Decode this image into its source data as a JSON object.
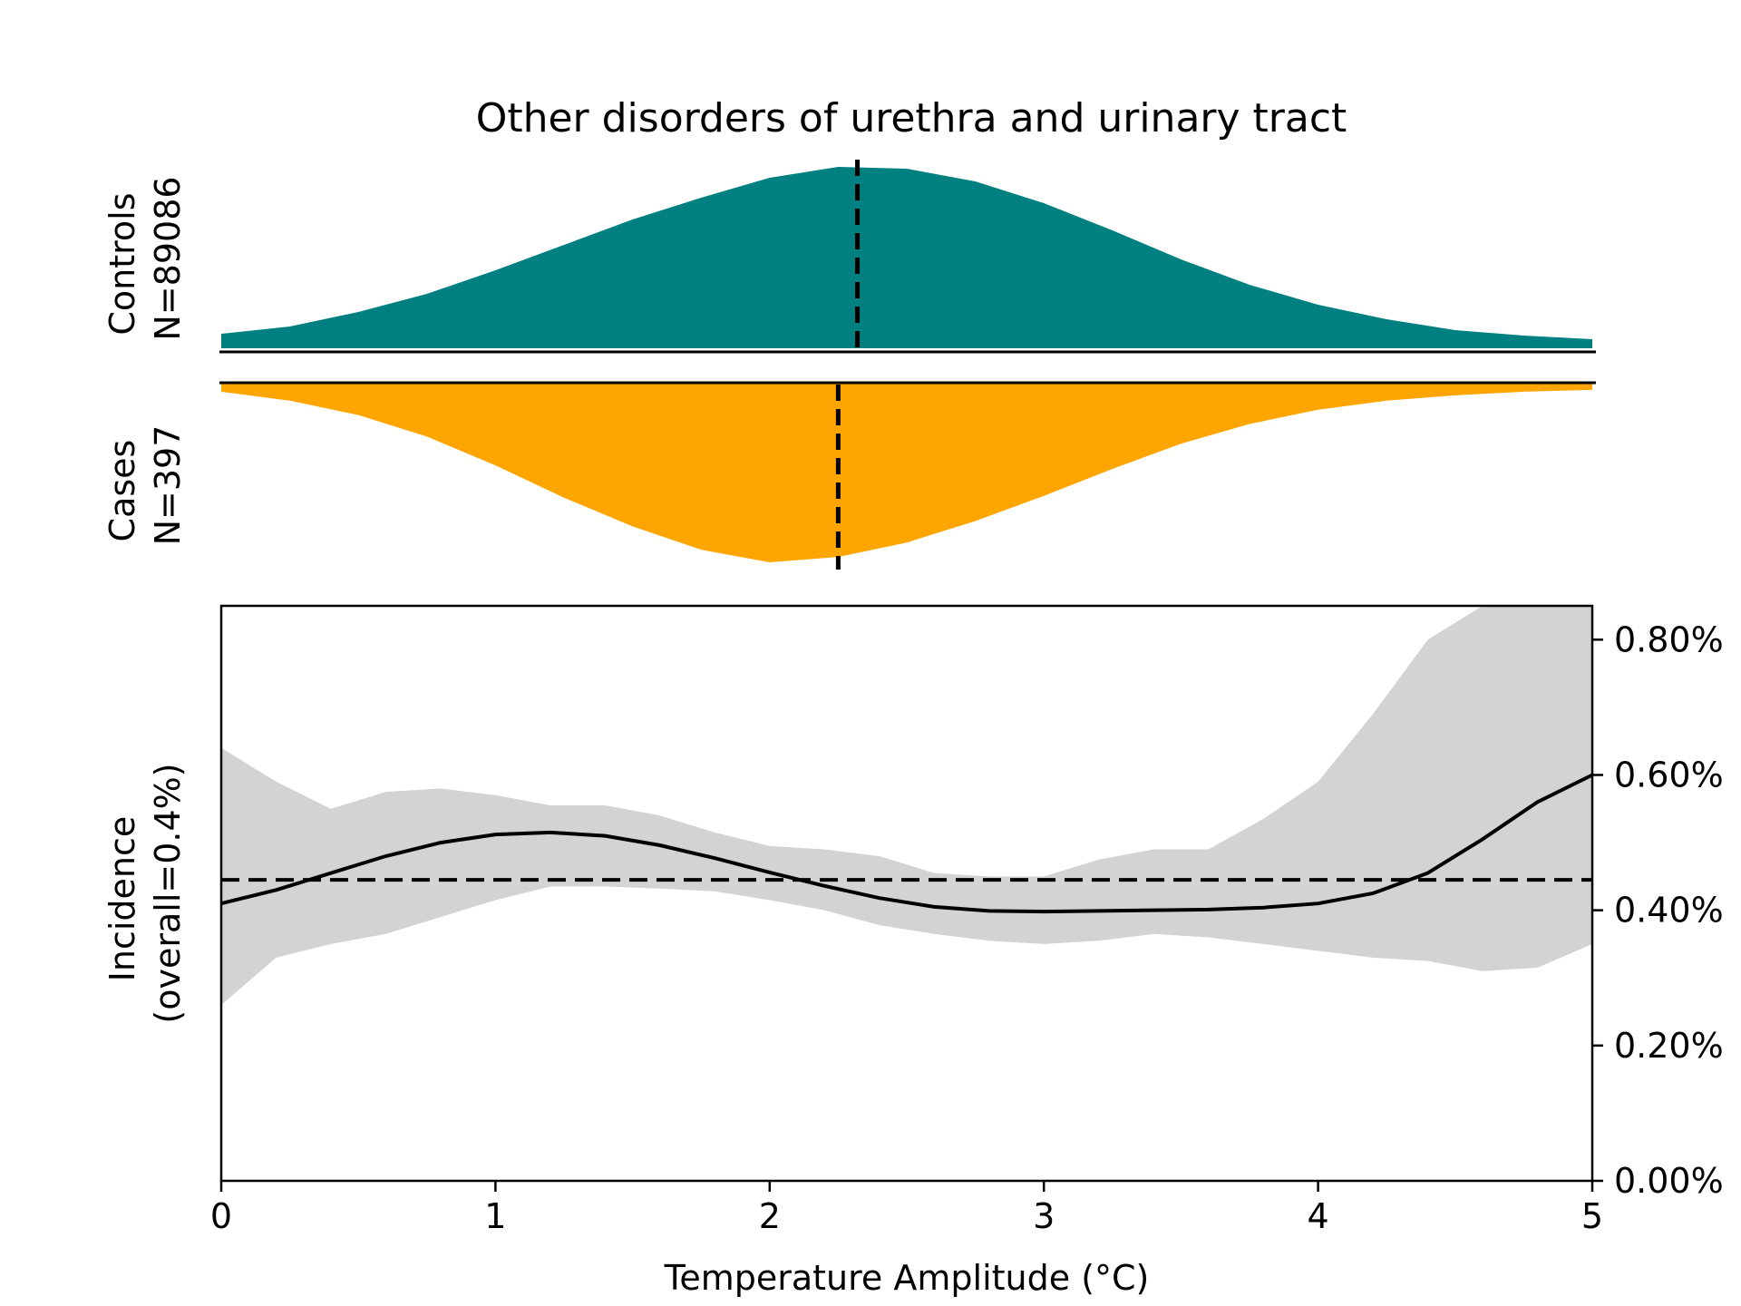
{
  "colors": {
    "controls": "#008080",
    "cases": "#FFA500",
    "ci_band": "#D3D3D3",
    "line": "#000000"
  },
  "chart_data": [
    {
      "type": "area",
      "panel": "controls-density",
      "title": "Other disorders of urethra and urinary tract",
      "ylabel_line1": "Controls",
      "ylabel_line2": "N=89086",
      "x": [
        0,
        0.25,
        0.5,
        0.75,
        1.0,
        1.25,
        1.5,
        1.75,
        2.0,
        2.25,
        2.5,
        2.75,
        3.0,
        3.25,
        3.5,
        3.75,
        4.0,
        4.25,
        4.5,
        4.75,
        5.0
      ],
      "values": [
        0.08,
        0.12,
        0.2,
        0.3,
        0.43,
        0.57,
        0.71,
        0.83,
        0.94,
        1.0,
        0.99,
        0.92,
        0.8,
        0.65,
        0.49,
        0.35,
        0.24,
        0.16,
        0.1,
        0.07,
        0.05
      ],
      "mean_marker_x": 2.32
    },
    {
      "type": "area",
      "panel": "cases-density",
      "ylabel_line1": "Cases",
      "ylabel_line2": "N=397",
      "x": [
        0,
        0.25,
        0.5,
        0.75,
        1.0,
        1.25,
        1.5,
        1.75,
        2.0,
        2.25,
        2.5,
        2.75,
        3.0,
        3.25,
        3.5,
        3.75,
        4.0,
        4.25,
        4.5,
        4.75,
        5.0
      ],
      "values": [
        0.05,
        0.1,
        0.18,
        0.3,
        0.46,
        0.64,
        0.8,
        0.93,
        1.0,
        0.97,
        0.89,
        0.77,
        0.63,
        0.48,
        0.34,
        0.23,
        0.15,
        0.1,
        0.07,
        0.05,
        0.04
      ],
      "mean_marker_x": 2.25
    },
    {
      "type": "line",
      "panel": "incidence",
      "xlabel": "Temperature Amplitude (°C)",
      "ylabel_line1": "Incidence",
      "ylabel_line2": "(overall=0.4%)",
      "xlim": [
        0,
        5
      ],
      "ylim": [
        0,
        0.85
      ],
      "xticks": [
        {
          "v": 0,
          "label": "0"
        },
        {
          "v": 1,
          "label": "1"
        },
        {
          "v": 2,
          "label": "2"
        },
        {
          "v": 3,
          "label": "3"
        },
        {
          "v": 4,
          "label": "4"
        },
        {
          "v": 5,
          "label": "5"
        }
      ],
      "yticks": [
        {
          "v": 0.0,
          "label": "0.00%"
        },
        {
          "v": 0.2,
          "label": "0.20%"
        },
        {
          "v": 0.4,
          "label": "0.40%"
        },
        {
          "v": 0.6,
          "label": "0.60%"
        },
        {
          "v": 0.8,
          "label": "0.80%"
        }
      ],
      "x": [
        0,
        0.2,
        0.4,
        0.6,
        0.8,
        1.0,
        1.2,
        1.4,
        1.6,
        1.8,
        2.0,
        2.2,
        2.4,
        2.6,
        2.8,
        3.0,
        3.2,
        3.4,
        3.6,
        3.8,
        4.0,
        4.2,
        4.4,
        4.6,
        4.8,
        5.0
      ],
      "series": [
        {
          "values": [
            0.41,
            0.43,
            0.455,
            0.48,
            0.5,
            0.512,
            0.515,
            0.51,
            0.496,
            0.477,
            0.456,
            0.436,
            0.418,
            0.405,
            0.399,
            0.398,
            0.399,
            0.4,
            0.401,
            0.404,
            0.41,
            0.425,
            0.455,
            0.505,
            0.56,
            0.6
          ],
          "ci_upper": [
            0.64,
            0.59,
            0.55,
            0.575,
            0.58,
            0.57,
            0.555,
            0.555,
            0.54,
            0.515,
            0.495,
            0.49,
            0.48,
            0.455,
            0.45,
            0.45,
            0.475,
            0.49,
            0.49,
            0.535,
            0.59,
            0.69,
            0.8,
            0.85,
            0.85,
            0.85
          ],
          "ci_lower": [
            0.26,
            0.33,
            0.35,
            0.365,
            0.39,
            0.415,
            0.435,
            0.435,
            0.432,
            0.428,
            0.415,
            0.4,
            0.378,
            0.365,
            0.355,
            0.35,
            0.355,
            0.365,
            0.36,
            0.35,
            0.34,
            0.33,
            0.325,
            0.31,
            0.315,
            0.35
          ]
        }
      ],
      "reference_line_y": 0.445
    }
  ]
}
